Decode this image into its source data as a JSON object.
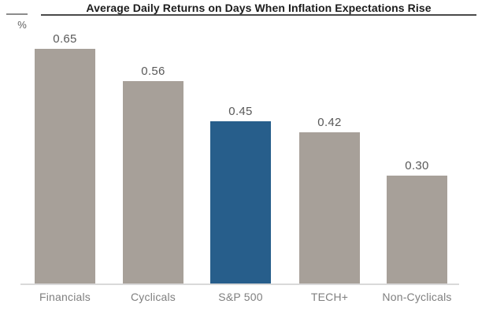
{
  "title": "Average Daily Returns on Days When Inflation Expectations Rise",
  "unit_label": "%",
  "chart_data": {
    "type": "bar",
    "title": "Average Daily Returns on Days When Inflation Expectations Rise",
    "xlabel": "",
    "ylabel": "%",
    "categories": [
      "Financials",
      "Cyclicals",
      "S&P 500",
      "TECH+",
      "Non-Cyclicals"
    ],
    "values": [
      0.65,
      0.56,
      0.45,
      0.42,
      0.3
    ],
    "value_labels": [
      "0.65",
      "0.56",
      "0.45",
      "0.42",
      "0.30"
    ],
    "ylim": [
      0,
      0.72
    ],
    "grid": false,
    "legend": "none",
    "bar_color": "#a7a099",
    "highlight_color": "#275e8b",
    "highlight_index": 2,
    "highlight_category": "S&P 500"
  }
}
